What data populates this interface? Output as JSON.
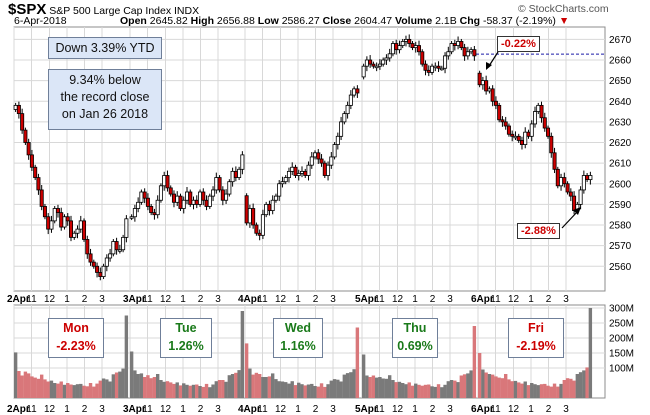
{
  "header": {
    "symbol": "$SPX",
    "name": "S&P 500 Large Cap Index",
    "exchange": "INDX",
    "date": "6-Apr-2018",
    "open_label": "Open",
    "open": "2645.82",
    "high_label": "High",
    "high": "2656.88",
    "low_label": "Low",
    "low": "2586.27",
    "close_label": "Close",
    "close": "2604.47",
    "volume_label": "Volume",
    "volume": "2.1B",
    "chg_label": "Chg",
    "chg": "-58.37 (-2.19%)",
    "watermark": "© StockCharts.com"
  },
  "annotations": {
    "ytd": "Down 3.39% YTD",
    "record_line1": "9.34% below",
    "record_line2": "the record close",
    "record_line3": "on Jan 26 2018",
    "gap_pct": "-0.22%",
    "fri_pct": "-2.88%"
  },
  "days": [
    {
      "name": "Mon",
      "pct": "-2.23%",
      "color": "#cc0000"
    },
    {
      "name": "Tue",
      "pct": "1.26%",
      "color": "#1a7a1a"
    },
    {
      "name": "Wed",
      "pct": "1.16%",
      "color": "#1a7a1a"
    },
    {
      "name": "Thu",
      "pct": "0.69%",
      "color": "#1a7a1a"
    },
    {
      "name": "Fri",
      "pct": "-2.19%",
      "color": "#cc0000"
    }
  ],
  "chart_data": {
    "type": "candlestick",
    "title": "$SPX S&P 500 Large Cap Index INDX",
    "price_axis": {
      "min": 2548,
      "max": 2676,
      "ticks": [
        2560,
        2570,
        2580,
        2590,
        2600,
        2610,
        2620,
        2630,
        2640,
        2650,
        2660,
        2670
      ],
      "side": "right"
    },
    "volume_axis": {
      "min": 0,
      "max": 310,
      "ticks": [
        100,
        150,
        200,
        250,
        300
      ],
      "tick_labels": [
        "100M",
        "150M",
        "200M",
        "250M",
        "300M"
      ],
      "side": "right"
    },
    "x_tick_labels": [
      "2Apr",
      "11",
      "12",
      "1",
      "2",
      "3",
      "3Apr",
      "11",
      "12",
      "1",
      "2",
      "3",
      "4Apr",
      "11",
      "12",
      "1",
      "2",
      "3",
      "5Apr",
      "11",
      "12",
      "1",
      "2",
      "3",
      "6Apr",
      "11",
      "12",
      "1",
      "2",
      "3"
    ],
    "day_start_labels": [
      "2Apr",
      "3Apr",
      "4Apr",
      "5Apr",
      "6Apr"
    ],
    "prior_close_reference": 2662.84,
    "days": [
      {
        "label": "2Apr",
        "closes": [
          2638,
          2634,
          2626,
          2620,
          2614,
          2608,
          2603,
          2597,
          2589,
          2584,
          2578,
          2582,
          2588,
          2586,
          2579,
          2584,
          2582,
          2574,
          2576,
          2578,
          2582,
          2573,
          2566,
          2562,
          2560,
          2557,
          2555,
          2560,
          2564,
          2566,
          2572,
          2568,
          2568,
          2574,
          2583
        ]
      },
      {
        "label": "3Apr",
        "closes": [
          2584,
          2588,
          2591,
          2596,
          2593,
          2589,
          2586,
          2585,
          2592,
          2599,
          2604,
          2598,
          2595,
          2591,
          2594,
          2588,
          2592,
          2596,
          2590,
          2592,
          2590,
          2596,
          2592,
          2589,
          2594,
          2597,
          2603,
          2597,
          2592,
          2595,
          2601,
          2606,
          2603,
          2607,
          2614
        ]
      },
      {
        "label": "4Apr",
        "closes": [
          2581,
          2588,
          2580,
          2576,
          2575,
          2585,
          2590,
          2587,
          2592,
          2594,
          2600,
          2601,
          2603,
          2606,
          2608,
          2604,
          2605,
          2606,
          2604,
          2609,
          2613,
          2615,
          2612,
          2610,
          2604,
          2609,
          2613,
          2619,
          2623,
          2630,
          2634,
          2638,
          2643,
          2646,
          2644
        ]
      },
      {
        "label": "5Apr",
        "closes": [
          2657,
          2660,
          2658,
          2657,
          2657,
          2658,
          2660,
          2661,
          2663,
          2668,
          2665,
          2667,
          2669,
          2670,
          2668,
          2666,
          2667,
          2664,
          2658,
          2655,
          2654,
          2657,
          2657,
          2656,
          2656,
          2662,
          2664,
          2668,
          2667,
          2669,
          2666,
          2662,
          2664,
          2665,
          2662
        ]
      },
      {
        "label": "6Apr",
        "closes": [
          2648,
          2650,
          2645,
          2646,
          2640,
          2638,
          2631,
          2630,
          2628,
          2624,
          2623,
          2623,
          2621,
          2619,
          2625,
          2623,
          2629,
          2635,
          2638,
          2632,
          2627,
          2623,
          2615,
          2607,
          2599,
          2603,
          2600,
          2596,
          2594,
          2587,
          2590,
          2597,
          2604,
          2602,
          2604
        ]
      }
    ],
    "volume_profile_M": [
      150,
      65,
      92,
      80,
      75,
      72,
      67,
      68,
      80,
      62,
      55,
      55,
      52,
      47,
      55,
      42,
      50,
      45,
      42,
      45,
      46,
      40,
      38,
      48,
      37,
      46,
      58,
      62,
      60,
      55,
      78,
      82,
      85,
      95,
      280
    ],
    "volume_by_day_M": [
      [
        152,
        90,
        75,
        88,
        82,
        72,
        68,
        64,
        78,
        62,
        55,
        58,
        50,
        48,
        55,
        44,
        50,
        45,
        43,
        46,
        47,
        41,
        39,
        50,
        38,
        48,
        58,
        65,
        62,
        55,
        79,
        85,
        88,
        98,
        275
      ],
      [
        155,
        92,
        80,
        82,
        70,
        76,
        66,
        70,
        80,
        60,
        54,
        56,
        52,
        47,
        52,
        42,
        49,
        44,
        41,
        44,
        45,
        40,
        37,
        47,
        36,
        45,
        56,
        60,
        60,
        54,
        76,
        80,
        84,
        93,
        290
      ],
      [
        182,
        98,
        78,
        84,
        80,
        70,
        70,
        72,
        82,
        63,
        56,
        55,
        53,
        48,
        56,
        43,
        51,
        46,
        42,
        45,
        47,
        40,
        38,
        49,
        37,
        46,
        58,
        63,
        61,
        55,
        78,
        83,
        86,
        96,
        235
      ],
      [
        145,
        75,
        70,
        75,
        68,
        70,
        65,
        64,
        76,
        60,
        53,
        54,
        50,
        46,
        52,
        41,
        48,
        44,
        41,
        44,
        45,
        39,
        37,
        46,
        36,
        44,
        56,
        60,
        58,
        53,
        75,
        79,
        82,
        92,
        240
      ],
      [
        150,
        95,
        85,
        80,
        78,
        72,
        68,
        66,
        80,
        62,
        56,
        57,
        52,
        48,
        55,
        43,
        50,
        46,
        43,
        46,
        47,
        41,
        38,
        48,
        38,
        47,
        60,
        66,
        64,
        58,
        80,
        86,
        92,
        102,
        300
      ]
    ],
    "colors": {
      "up_body": "#ffffff",
      "down_body": "#cc0000",
      "wick": "#000000",
      "vol_up": "#7a7a7a",
      "vol_down": "#d9777a",
      "grid": "#d8d8d8"
    }
  }
}
